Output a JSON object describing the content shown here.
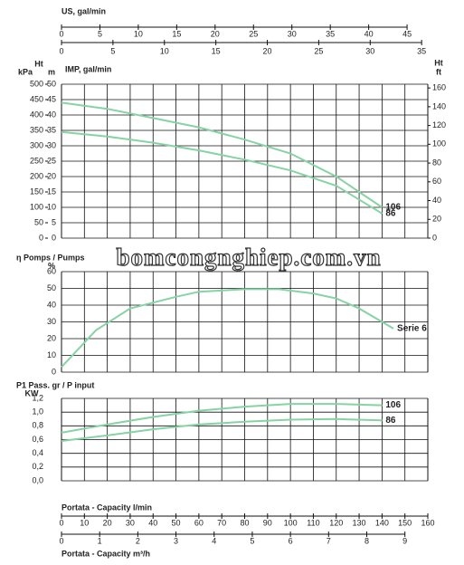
{
  "watermark": "bomcongnghiep.com.vn",
  "flow_axes": [
    {
      "label": "US, gal/min",
      "xlim": [
        0,
        47.7
      ],
      "xticks": [
        0,
        5,
        10,
        15,
        20,
        25,
        30,
        35,
        40,
        45
      ]
    },
    {
      "label": "IMP, gal/min",
      "xlim": [
        0,
        35.6
      ],
      "xticks": [
        0,
        5,
        10,
        15,
        20,
        25,
        30,
        35
      ]
    },
    {
      "label": "Portata - Capacity l/min",
      "xlim": [
        0,
        160
      ],
      "xticks": [
        0,
        10,
        20,
        30,
        40,
        50,
        60,
        70,
        80,
        90,
        100,
        110,
        120,
        130,
        140,
        150,
        160
      ]
    },
    {
      "label": "Portata - Capacity m³/h",
      "xlim": [
        0,
        9.6
      ],
      "xticks": [
        0,
        1,
        2,
        3,
        4,
        5,
        6,
        7,
        8,
        9
      ]
    }
  ],
  "chart_data": [
    {
      "type": "line",
      "ylabel_top": "Ht",
      "ylabel": "m",
      "ylim": [
        0,
        50
      ],
      "yticks": [
        0,
        5,
        10,
        15,
        20,
        25,
        30,
        35,
        40,
        45,
        50
      ],
      "y_left2": {
        "label": "kPa",
        "ylim": [
          0,
          500
        ],
        "yticks": [
          0,
          50,
          100,
          150,
          200,
          250,
          300,
          350,
          400,
          450,
          500
        ]
      },
      "y2label_top": "Ht",
      "y2label": "ft",
      "y2lim": [
        0,
        164
      ],
      "y2ticks": [
        0,
        20,
        40,
        60,
        80,
        100,
        120,
        140,
        160
      ],
      "xlim": [
        0,
        160
      ],
      "grid": true,
      "x": [
        0,
        20,
        40,
        60,
        80,
        100,
        120,
        140
      ],
      "series": [
        {
          "name": "106",
          "color": "#86d3a3",
          "values": [
            44,
            42,
            39,
            36,
            32,
            27.5,
            20,
            10
          ]
        },
        {
          "name": "86",
          "color": "#86d3a3",
          "values": [
            34.5,
            33,
            31,
            28.5,
            25.5,
            22,
            17,
            8
          ]
        }
      ]
    },
    {
      "type": "line",
      "ylabel_top": "η Pomps / Pumps",
      "ylabel": "%",
      "ylim": [
        0,
        60
      ],
      "yticks": [
        0,
        10,
        20,
        30,
        40,
        50,
        60
      ],
      "xlim": [
        0,
        160
      ],
      "grid": true,
      "x": [
        0,
        15,
        30,
        50,
        60,
        80,
        95,
        110,
        120,
        130,
        140,
        145
      ],
      "series": [
        {
          "name": "Serie 6",
          "color": "#86d3a3",
          "values": [
            3,
            25,
            38,
            45,
            48,
            49.5,
            49.5,
            47,
            44,
            38,
            30,
            26
          ]
        }
      ]
    },
    {
      "type": "line",
      "ylabel_top": "P1 Pass. gr / P input",
      "ylabel": "KW",
      "ylim": [
        0,
        1.2
      ],
      "yticks": [
        {
          "value": 0,
          "label": "0,0"
        },
        {
          "value": 0.2,
          "label": "0,2"
        },
        {
          "value": 0.4,
          "label": "0,4"
        },
        {
          "value": 0.6,
          "label": "0,6"
        },
        {
          "value": 0.8,
          "label": "0,8"
        },
        {
          "value": 1,
          "label": "1,0"
        },
        {
          "value": 1.2,
          "label": "1,2"
        }
      ],
      "xlim": [
        0,
        160
      ],
      "grid": true,
      "x": [
        0,
        20,
        40,
        60,
        80,
        100,
        120,
        140
      ],
      "series": [
        {
          "name": "106",
          "color": "#86d3a3",
          "values": [
            0.7,
            0.82,
            0.93,
            1.02,
            1.08,
            1.12,
            1.12,
            1.1
          ]
        },
        {
          "name": "86",
          "color": "#86d3a3",
          "values": [
            0.58,
            0.66,
            0.75,
            0.82,
            0.86,
            0.89,
            0.9,
            0.88
          ]
        }
      ]
    }
  ]
}
